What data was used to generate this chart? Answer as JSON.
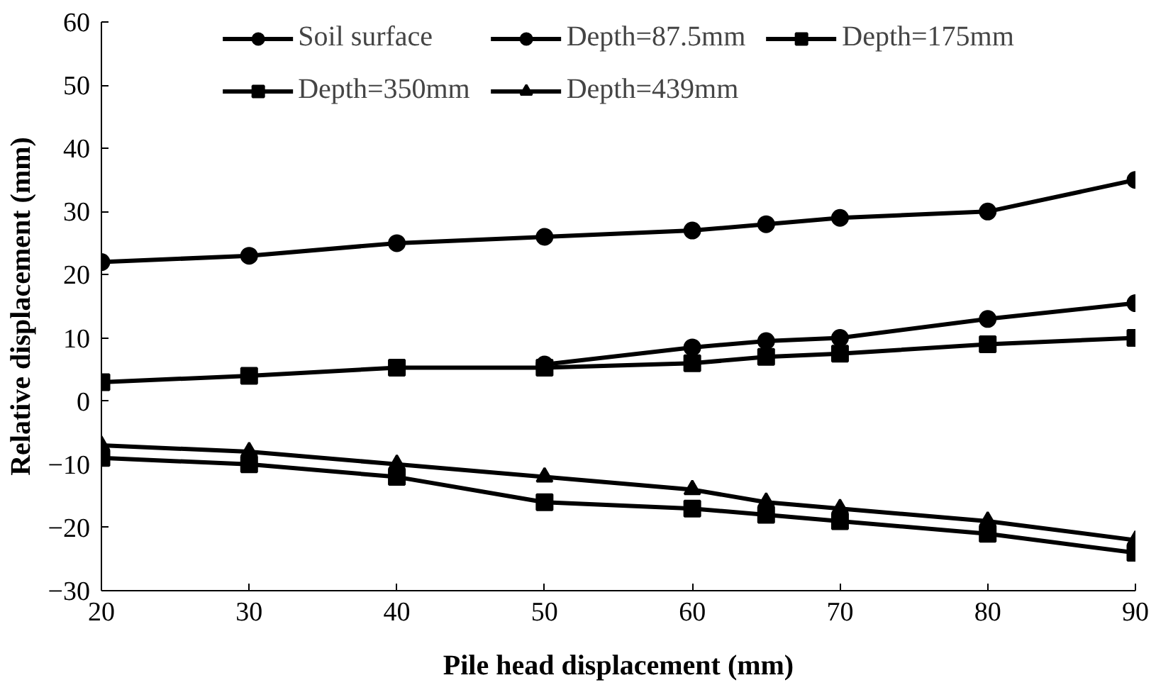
{
  "chart_data": {
    "type": "line",
    "xlabel": "Pile head displacement (mm)",
    "ylabel": "Relative displacement (mm)",
    "x": [
      20,
      30,
      40,
      50,
      60,
      65,
      70,
      80,
      90
    ],
    "xlim": [
      20,
      90
    ],
    "xticks": [
      20,
      30,
      40,
      50,
      60,
      70,
      80,
      90
    ],
    "ylim": [
      -30,
      60
    ],
    "yticks": [
      -30,
      -20,
      -10,
      0,
      10,
      20,
      30,
      40,
      50,
      60
    ],
    "grid": false,
    "legend": "top",
    "line_style": "solid",
    "series": [
      {
        "name": "Soil surface",
        "color": "#000000",
        "marker": "circle",
        "values": [
          22,
          23,
          25,
          26,
          27,
          28,
          29,
          30,
          35
        ]
      },
      {
        "name": "Depth=87.5mm",
        "color": "#000000",
        "marker": "circle",
        "values": [
          null,
          null,
          null,
          5.8,
          8.5,
          9.5,
          10,
          13,
          15.5
        ]
      },
      {
        "name": "Depth=175mm",
        "color": "#000000",
        "marker": "square",
        "values": [
          3,
          4,
          5.3,
          5.3,
          6,
          7,
          7.5,
          9,
          10
        ]
      },
      {
        "name": "Depth=350mm",
        "color": "#000000",
        "marker": "square",
        "values": [
          -9,
          -10,
          -12,
          -16,
          -17,
          -18,
          -19,
          -21,
          -24
        ]
      },
      {
        "name": "Depth=439mm",
        "color": "#000000",
        "marker": "triangle",
        "values": [
          -7,
          -8,
          -10,
          -12,
          -14,
          -16,
          -17,
          -19,
          -22
        ]
      }
    ]
  }
}
